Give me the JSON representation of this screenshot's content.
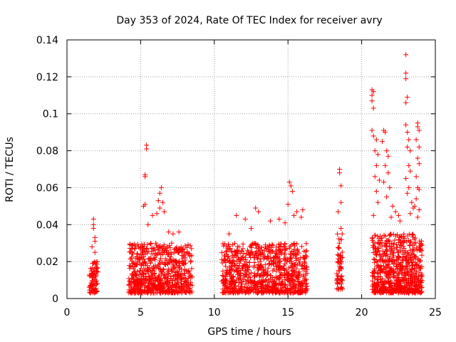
{
  "chart_data": {
    "type": "scatter",
    "title": "Day 353 of 2024, Rate Of TEC Index for receiver avry",
    "xlabel": "GPS time / hours",
    "ylabel": "ROTI / TECUs",
    "xlim": [
      0,
      25
    ],
    "ylim": [
      0,
      0.14
    ],
    "xticks": [
      0,
      5,
      10,
      15,
      20,
      25
    ],
    "xtick_labels": [
      "0",
      "5",
      "10",
      "15",
      "20",
      "25"
    ],
    "yticks": [
      0,
      0.02,
      0.04,
      0.06,
      0.08,
      0.1,
      0.12,
      0.14
    ],
    "ytick_labels": [
      "0",
      "0.02",
      "0.04",
      "0.06",
      "0.08",
      "0.1",
      "0.12",
      "0.14"
    ],
    "grid": true,
    "marker": "+",
    "series": [
      {
        "name": "ROTI",
        "color": "#ff0000",
        "clusters": [
          {
            "x_range": [
              1.5,
              2.1
            ],
            "y_range": [
              0.003,
              0.02
            ],
            "count": 80
          },
          {
            "x_range": [
              4.2,
              8.5
            ],
            "y_range": [
              0.003,
              0.03
            ],
            "count": 700
          },
          {
            "x_range": [
              10.5,
              16.3
            ],
            "y_range": [
              0.003,
              0.03
            ],
            "count": 900
          },
          {
            "x_range": [
              18.3,
              18.7
            ],
            "y_range": [
              0.005,
              0.035
            ],
            "count": 60
          },
          {
            "x_range": [
              20.7,
              24.1
            ],
            "y_range": [
              0.003,
              0.035
            ],
            "count": 700
          }
        ],
        "points": [
          [
            1.8,
            0.043
          ],
          [
            1.8,
            0.04
          ],
          [
            1.9,
            0.033
          ],
          [
            1.9,
            0.031
          ],
          [
            1.8,
            0.038
          ],
          [
            1.7,
            0.028
          ],
          [
            1.9,
            0.025
          ],
          [
            5.4,
            0.083
          ],
          [
            5.4,
            0.081
          ],
          [
            5.3,
            0.067
          ],
          [
            5.3,
            0.066
          ],
          [
            5.3,
            0.051
          ],
          [
            5.2,
            0.05
          ],
          [
            6.4,
            0.06
          ],
          [
            6.3,
            0.057
          ],
          [
            6.2,
            0.053
          ],
          [
            6.5,
            0.052
          ],
          [
            6.3,
            0.049
          ],
          [
            6.6,
            0.047
          ],
          [
            6.1,
            0.046
          ],
          [
            5.8,
            0.045
          ],
          [
            5.5,
            0.04
          ],
          [
            6.9,
            0.036
          ],
          [
            7.2,
            0.035
          ],
          [
            7.6,
            0.036
          ],
          [
            11.5,
            0.045
          ],
          [
            12.8,
            0.049
          ],
          [
            13.0,
            0.047
          ],
          [
            12.1,
            0.043
          ],
          [
            13.8,
            0.042
          ],
          [
            14.4,
            0.043
          ],
          [
            15.0,
            0.051
          ],
          [
            15.1,
            0.063
          ],
          [
            15.2,
            0.061
          ],
          [
            15.3,
            0.058
          ],
          [
            15.6,
            0.047
          ],
          [
            16.0,
            0.048
          ],
          [
            15.4,
            0.045
          ],
          [
            14.8,
            0.041
          ],
          [
            15.9,
            0.044
          ],
          [
            11.0,
            0.035
          ],
          [
            12.5,
            0.038
          ],
          [
            18.5,
            0.07
          ],
          [
            18.5,
            0.068
          ],
          [
            18.6,
            0.061
          ],
          [
            18.6,
            0.052
          ],
          [
            18.4,
            0.047
          ],
          [
            18.6,
            0.038
          ],
          [
            20.7,
            0.113
          ],
          [
            20.8,
            0.112
          ],
          [
            20.7,
            0.11
          ],
          [
            20.7,
            0.107
          ],
          [
            20.8,
            0.103
          ],
          [
            20.7,
            0.091
          ],
          [
            20.8,
            0.088
          ],
          [
            21.0,
            0.086
          ],
          [
            20.9,
            0.08
          ],
          [
            21.1,
            0.078
          ],
          [
            21.0,
            0.072
          ],
          [
            20.9,
            0.066
          ],
          [
            21.2,
            0.064
          ],
          [
            21.0,
            0.058
          ],
          [
            21.1,
            0.052
          ],
          [
            20.8,
            0.045
          ],
          [
            21.5,
            0.091
          ],
          [
            21.6,
            0.09
          ],
          [
            21.4,
            0.085
          ],
          [
            21.7,
            0.08
          ],
          [
            21.8,
            0.077
          ],
          [
            21.6,
            0.072
          ],
          [
            21.8,
            0.068
          ],
          [
            21.5,
            0.063
          ],
          [
            21.9,
            0.06
          ],
          [
            21.7,
            0.055
          ],
          [
            22.1,
            0.05
          ],
          [
            22.3,
            0.047
          ],
          [
            22.5,
            0.045
          ],
          [
            22.0,
            0.044
          ],
          [
            22.6,
            0.042
          ],
          [
            23.0,
            0.132
          ],
          [
            23.0,
            0.122
          ],
          [
            23.0,
            0.119
          ],
          [
            23.1,
            0.109
          ],
          [
            23.0,
            0.106
          ],
          [
            23.0,
            0.094
          ],
          [
            23.1,
            0.09
          ],
          [
            23.2,
            0.086
          ],
          [
            23.1,
            0.082
          ],
          [
            23.3,
            0.08
          ],
          [
            23.2,
            0.072
          ],
          [
            23.3,
            0.069
          ],
          [
            23.0,
            0.065
          ],
          [
            23.2,
            0.06
          ],
          [
            23.1,
            0.057
          ],
          [
            23.4,
            0.052
          ],
          [
            23.5,
            0.049
          ],
          [
            23.3,
            0.046
          ],
          [
            23.8,
            0.095
          ],
          [
            23.8,
            0.093
          ],
          [
            23.9,
            0.091
          ],
          [
            23.7,
            0.086
          ],
          [
            23.9,
            0.082
          ],
          [
            23.8,
            0.076
          ],
          [
            23.9,
            0.073
          ],
          [
            23.7,
            0.066
          ],
          [
            23.8,
            0.06
          ],
          [
            23.9,
            0.059
          ],
          [
            23.7,
            0.054
          ],
          [
            23.6,
            0.05
          ],
          [
            23.9,
            0.048
          ],
          [
            23.8,
            0.044
          ]
        ]
      }
    ]
  }
}
